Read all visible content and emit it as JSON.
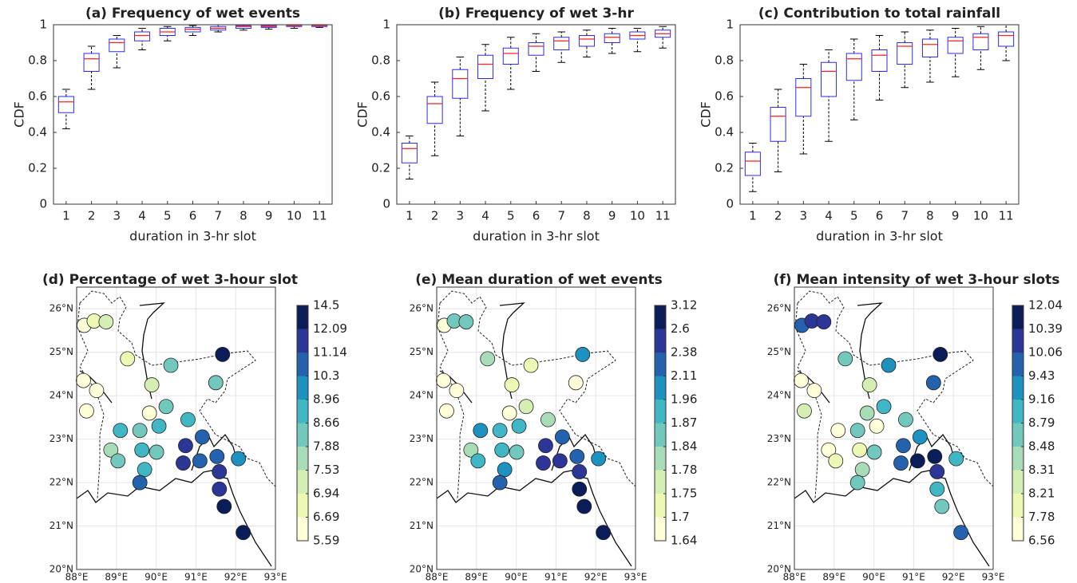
{
  "chart_data": [
    {
      "type": "box",
      "title": "(a) Frequency of wet events",
      "ylabel": "CDF",
      "xlabel": "duration in 3-hr slot",
      "categories": [
        1,
        2,
        3,
        4,
        5,
        6,
        7,
        8,
        9,
        10,
        11
      ],
      "values": [
        [
          0.42,
          0.51,
          0.57,
          0.6,
          0.64
        ],
        [
          0.64,
          0.74,
          0.81,
          0.84,
          0.88
        ],
        [
          0.76,
          0.85,
          0.9,
          0.92,
          0.94
        ],
        [
          0.86,
          0.91,
          0.94,
          0.96,
          0.98
        ],
        [
          0.91,
          0.94,
          0.96,
          0.98,
          0.99
        ],
        [
          0.94,
          0.96,
          0.975,
          0.985,
          0.995
        ],
        [
          0.96,
          0.97,
          0.98,
          0.99,
          1
        ],
        [
          0.97,
          0.98,
          0.99,
          0.995,
          1
        ],
        [
          0.975,
          0.985,
          0.99,
          0.995,
          1
        ],
        [
          0.98,
          0.99,
          0.995,
          1,
          1
        ],
        [
          0.985,
          0.99,
          0.995,
          1,
          1
        ]
      ],
      "ylim": [
        0,
        1
      ],
      "yticks": [
        0,
        0.2,
        0.4,
        0.6,
        0.8,
        1
      ],
      "box_color": "#2b2bf0",
      "median_color": "#ff2020",
      "whisker_color": "#000000"
    },
    {
      "type": "box",
      "title": "(b) Frequency of wet 3-hr",
      "ylabel": "CDF",
      "xlabel": "duration in 3-hr slot",
      "categories": [
        1,
        2,
        3,
        4,
        5,
        6,
        7,
        8,
        9,
        10,
        11
      ],
      "values": [
        [
          0.14,
          0.23,
          0.31,
          0.34,
          0.38
        ],
        [
          0.27,
          0.45,
          0.56,
          0.6,
          0.68
        ],
        [
          0.38,
          0.59,
          0.7,
          0.75,
          0.82
        ],
        [
          0.52,
          0.7,
          0.78,
          0.83,
          0.89
        ],
        [
          0.64,
          0.78,
          0.84,
          0.87,
          0.93
        ],
        [
          0.74,
          0.83,
          0.88,
          0.9,
          0.95
        ],
        [
          0.79,
          0.86,
          0.91,
          0.93,
          0.96
        ],
        [
          0.82,
          0.88,
          0.92,
          0.94,
          0.97
        ],
        [
          0.84,
          0.9,
          0.93,
          0.95,
          0.98
        ],
        [
          0.85,
          0.92,
          0.94,
          0.96,
          0.98
        ],
        [
          0.87,
          0.93,
          0.95,
          0.97,
          0.99
        ]
      ],
      "ylim": [
        0,
        1
      ],
      "yticks": [
        0,
        0.2,
        0.4,
        0.6,
        0.8,
        1
      ],
      "box_color": "#2b2bf0",
      "median_color": "#ff2020",
      "whisker_color": "#000000"
    },
    {
      "type": "box",
      "title": "(c) Contribution to total rainfall",
      "ylabel": "CDF",
      "xlabel": "duration in 3-hr slot",
      "categories": [
        1,
        2,
        3,
        4,
        5,
        6,
        7,
        8,
        9,
        10,
        11
      ],
      "values": [
        [
          0.07,
          0.16,
          0.24,
          0.29,
          0.34
        ],
        [
          0.18,
          0.35,
          0.49,
          0.54,
          0.64
        ],
        [
          0.28,
          0.49,
          0.65,
          0.7,
          0.78
        ],
        [
          0.35,
          0.6,
          0.74,
          0.79,
          0.86
        ],
        [
          0.47,
          0.69,
          0.81,
          0.84,
          0.92
        ],
        [
          0.58,
          0.74,
          0.83,
          0.86,
          0.94
        ],
        [
          0.65,
          0.78,
          0.88,
          0.9,
          0.96
        ],
        [
          0.68,
          0.82,
          0.89,
          0.92,
          0.97
        ],
        [
          0.71,
          0.84,
          0.91,
          0.93,
          0.98
        ],
        [
          0.75,
          0.86,
          0.93,
          0.95,
          0.99
        ],
        [
          0.8,
          0.88,
          0.94,
          0.96,
          1
        ]
      ],
      "ylim": [
        0,
        1
      ],
      "yticks": [
        0,
        0.2,
        0.4,
        0.6,
        0.8,
        1
      ],
      "box_color": "#2b2bf0",
      "median_color": "#ff2020",
      "whisker_color": "#000000"
    },
    {
      "type": "map",
      "title": "(d) Percentage of wet 3-hour slot",
      "x": [
        88.19,
        88.44,
        88.74,
        88.17,
        88.5,
        88.25,
        89.28,
        89.89,
        90.37,
        89.83,
        90.25,
        89.1,
        89.59,
        88.86,
        89.04,
        89.64,
        90.07,
        90.01,
        89.71,
        90.8,
        91.16,
        90.74,
        90.68,
        91.1,
        91.53,
        92.07,
        89.59,
        91.59,
        91.59,
        91.71,
        92.19,
        91.67,
        91.5
      ],
      "y": [
        25.62,
        25.72,
        25.7,
        24.35,
        24.12,
        23.65,
        24.85,
        24.25,
        24.7,
        23.6,
        23.75,
        23.2,
        23.2,
        22.75,
        22.5,
        22.75,
        23.3,
        22.7,
        22.3,
        23.45,
        23.05,
        22.85,
        22.45,
        22.5,
        22.6,
        22.55,
        22.0,
        22.25,
        21.85,
        21.45,
        20.85,
        24.95,
        24.3
      ],
      "values": [
        6.1,
        6.8,
        7.2,
        6.1,
        6.1,
        6.1,
        6.8,
        7.2,
        8.3,
        6.1,
        8.3,
        8.8,
        8.3,
        7.7,
        8.3,
        8.8,
        8.8,
        8.3,
        8.8,
        8.8,
        10.7,
        11.6,
        11.6,
        10.7,
        10.7,
        9.6,
        10.7,
        11.6,
        11.6,
        13.3,
        13.3,
        13.3,
        8.3
      ],
      "xlim": [
        88,
        93
      ],
      "ylim": [
        20,
        26.5
      ],
      "xticks": [
        {
          "value": 88,
          "label": "88°E"
        },
        {
          "value": 89,
          "label": "89°E"
        },
        {
          "value": 90,
          "label": "90°E"
        },
        {
          "value": 91,
          "label": "91°E"
        },
        {
          "value": 92,
          "label": "92°E"
        },
        {
          "value": 93,
          "label": "93°E"
        }
      ],
      "yticks": [
        {
          "value": 20,
          "label": "20°N"
        },
        {
          "value": 21,
          "label": "21°N"
        },
        {
          "value": 22,
          "label": "22°N"
        },
        {
          "value": 23,
          "label": "23°N"
        },
        {
          "value": 24,
          "label": "24°N"
        },
        {
          "value": 25,
          "label": "25°N"
        },
        {
          "value": 26,
          "label": "26°N"
        }
      ],
      "grid": true,
      "colorbar_ticks": [
        5.59,
        6.69,
        6.94,
        7.53,
        7.88,
        8.66,
        8.96,
        10.3,
        11.14,
        12.09,
        14.5
      ],
      "colormap": [
        "#ffffd9",
        "#eef8b5",
        "#d4eeb3",
        "#a8dcb6",
        "#73c8bd",
        "#41b6c4",
        "#1d91c0",
        "#2562ad",
        "#2c3696",
        "#0b1d59"
      ]
    },
    {
      "type": "map",
      "title": "(e) Mean duration of wet events",
      "x": [
        88.19,
        88.44,
        88.74,
        88.17,
        88.5,
        88.25,
        89.28,
        89.89,
        90.37,
        89.83,
        90.25,
        89.1,
        89.59,
        88.86,
        89.04,
        89.64,
        90.07,
        90.01,
        89.71,
        90.8,
        91.16,
        90.74,
        90.68,
        91.1,
        91.53,
        92.07,
        89.59,
        91.59,
        91.59,
        91.71,
        92.19,
        91.67,
        91.5
      ],
      "y": [
        25.62,
        25.72,
        25.7,
        24.35,
        24.12,
        23.65,
        24.85,
        24.25,
        24.7,
        23.6,
        23.75,
        23.2,
        23.2,
        22.75,
        22.5,
        22.75,
        23.3,
        22.7,
        22.3,
        23.45,
        23.05,
        22.85,
        22.45,
        22.5,
        22.6,
        22.55,
        22.0,
        22.25,
        21.85,
        21.45,
        20.85,
        24.95,
        24.3
      ],
      "values": [
        1.67,
        1.85,
        1.85,
        1.67,
        1.67,
        1.67,
        1.81,
        1.72,
        1.72,
        1.67,
        1.76,
        2.03,
        1.91,
        1.81,
        1.91,
        1.91,
        1.91,
        1.85,
        2.03,
        1.81,
        2.24,
        2.49,
        2.49,
        2.49,
        2.24,
        2.03,
        2.24,
        2.49,
        2.85,
        2.85,
        2.85,
        2.03,
        1.67
      ],
      "xlim": [
        88,
        93
      ],
      "ylim": [
        20,
        26.5
      ],
      "xticks": [
        {
          "value": 88,
          "label": "88°E"
        },
        {
          "value": 89,
          "label": "89°E"
        },
        {
          "value": 90,
          "label": "90°E"
        },
        {
          "value": 91,
          "label": "91°E"
        },
        {
          "value": 92,
          "label": "92°E"
        },
        {
          "value": 93,
          "label": "93°E"
        }
      ],
      "yticks": [
        {
          "value": 20,
          "label": "20°N"
        },
        {
          "value": 21,
          "label": "21°N"
        },
        {
          "value": 22,
          "label": "22°N"
        },
        {
          "value": 23,
          "label": "23°N"
        },
        {
          "value": 24,
          "label": "24°N"
        },
        {
          "value": 25,
          "label": "25°N"
        },
        {
          "value": 26,
          "label": "26°N"
        }
      ],
      "grid": true,
      "colorbar_ticks": [
        1.64,
        1.7,
        1.75,
        1.78,
        1.84,
        1.87,
        1.96,
        2.11,
        2.38,
        2.6,
        3.12
      ],
      "colormap": [
        "#ffffd9",
        "#eef8b5",
        "#d4eeb3",
        "#a8dcb6",
        "#73c8bd",
        "#41b6c4",
        "#1d91c0",
        "#2562ad",
        "#2c3696",
        "#0b1d59"
      ]
    },
    {
      "type": "map",
      "title": "(f) Mean intensity of wet 3-hour slots",
      "x": [
        88.19,
        88.44,
        88.74,
        88.17,
        88.5,
        88.25,
        89.28,
        89.89,
        90.37,
        89.83,
        90.25,
        89.1,
        89.59,
        88.86,
        89.04,
        89.64,
        90.07,
        90.01,
        89.71,
        90.8,
        91.16,
        90.74,
        90.68,
        91.1,
        91.53,
        92.07,
        89.59,
        91.59,
        91.59,
        91.71,
        92.19,
        91.67,
        91.5
      ],
      "y": [
        25.62,
        25.72,
        25.7,
        24.35,
        24.12,
        23.65,
        24.85,
        24.25,
        24.7,
        23.6,
        23.75,
        23.2,
        23.2,
        22.75,
        22.5,
        22.75,
        23.3,
        22.7,
        22.3,
        23.45,
        23.05,
        22.85,
        22.45,
        22.5,
        22.6,
        22.55,
        22.0,
        22.25,
        21.85,
        21.45,
        20.85,
        24.95,
        24.3
      ],
      "values": [
        9.7,
        10.2,
        10.2,
        7.2,
        7.2,
        8.26,
        8.6,
        8.26,
        9.3,
        8.4,
        8.95,
        7.2,
        8.6,
        7.2,
        8.0,
        8.0,
        7.2,
        8.6,
        8.4,
        8.6,
        9.3,
        9.7,
        9.7,
        11.2,
        11.2,
        8.95,
        8.6,
        10.2,
        8.95,
        8.6,
        9.7,
        11.2,
        9.7
      ],
      "xlim": [
        88,
        93
      ],
      "ylim": [
        20,
        26.5
      ],
      "xticks": [
        {
          "value": 88,
          "label": "88°E"
        },
        {
          "value": 89,
          "label": "89°E"
        },
        {
          "value": 90,
          "label": "90°E"
        },
        {
          "value": 91,
          "label": "91°E"
        },
        {
          "value": 92,
          "label": "92°E"
        },
        {
          "value": 93,
          "label": "93°E"
        }
      ],
      "yticks": [
        {
          "value": 20,
          "label": "20°N"
        },
        {
          "value": 21,
          "label": "21°N"
        },
        {
          "value": 22,
          "label": "22°N"
        },
        {
          "value": 23,
          "label": "23°N"
        },
        {
          "value": 24,
          "label": "24°N"
        },
        {
          "value": 25,
          "label": "25°N"
        },
        {
          "value": 26,
          "label": "26°N"
        }
      ],
      "grid": true,
      "colorbar_ticks": [
        6.56,
        7.78,
        8.21,
        8.31,
        8.48,
        8.79,
        9.16,
        9.43,
        10.06,
        10.39,
        12.04
      ],
      "colormap": [
        "#ffffd9",
        "#eef8b5",
        "#d4eeb3",
        "#a8dcb6",
        "#73c8bd",
        "#41b6c4",
        "#1d91c0",
        "#2562ad",
        "#2c3696",
        "#0b1d59"
      ]
    }
  ]
}
